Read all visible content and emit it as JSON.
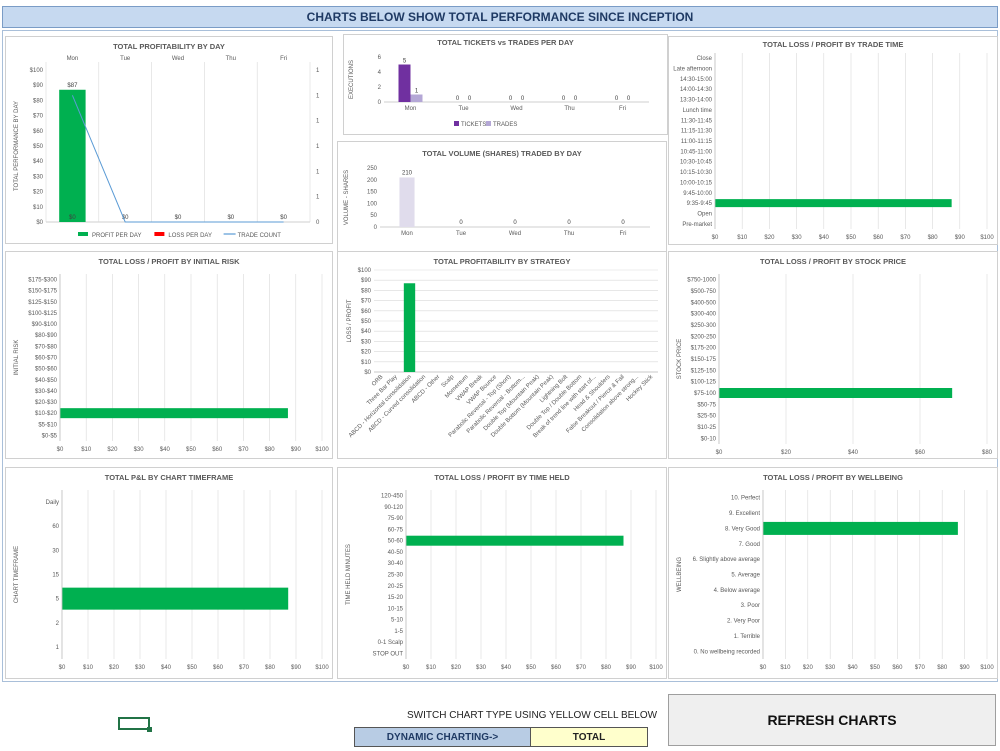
{
  "header": {
    "title": "CHARTS BELOW SHOW TOTAL PERFORMANCE SINCE INCEPTION"
  },
  "footer": {
    "switch_label": "SWITCH CHART TYPE USING YELLOW CELL BELOW",
    "dynamic_label": "DYNAMIC CHARTING->",
    "dynamic_value": "TOTAL",
    "refresh_label": "REFRESH CHARTS"
  },
  "colors": {
    "green": "#00b050",
    "red": "#ff0000",
    "blue": "#5b9bd5",
    "purple": "#7030a0",
    "lavender": "#b4a7d6",
    "lightlavender": "#e0dcec"
  },
  "chart_data": [
    {
      "id": "profit_by_day",
      "type": "bar",
      "title": "TOTAL PROFITABILITY BY DAY",
      "ylabel": "TOTAL PERFORMANCE BY DAY",
      "categories": [
        "Mon",
        "Tue",
        "Wed",
        "Thu",
        "Fri"
      ],
      "yticks": [
        "$0",
        "$10",
        "$20",
        "$30",
        "$40",
        "$50",
        "$60",
        "$70",
        "$80",
        "$90",
        "$100"
      ],
      "y2ticks": [
        "0",
        "1",
        "1",
        "1",
        "1",
        "1",
        "1"
      ],
      "ylim": [
        0,
        100
      ],
      "series": [
        {
          "name": "PROFIT PER DAY",
          "values": [
            87,
            0,
            0,
            0,
            0
          ]
        },
        {
          "name": "LOSS PER DAY",
          "values": [
            0,
            0,
            0,
            0,
            0
          ]
        },
        {
          "name": "TRADE COUNT",
          "values": [
            1,
            0,
            0,
            0,
            0
          ]
        }
      ],
      "data_labels": [
        "$87",
        "$0",
        "$0",
        "$0",
        "$0"
      ],
      "bar_inner_labels": [
        "$0",
        "",
        "",
        "",
        ""
      ],
      "legend": "bottom"
    },
    {
      "id": "tickets_trades",
      "type": "bar",
      "title": "TOTAL TICKETS vs TRADES PER DAY",
      "ylabel": "EXECUTIONS",
      "categories": [
        "Mon",
        "Tue",
        "Wed",
        "Thu",
        "Fri"
      ],
      "yticks": [
        "0",
        "2",
        "4",
        "6"
      ],
      "ylim": [
        0,
        6
      ],
      "series": [
        {
          "name": "TICKETS",
          "values": [
            5,
            0,
            0,
            0,
            0
          ]
        },
        {
          "name": "TRADES",
          "values": [
            1,
            0,
            0,
            0,
            0
          ]
        }
      ],
      "legend": "bottom"
    },
    {
      "id": "volume_by_day",
      "type": "bar",
      "title": "TOTAL VOLUME (SHARES) TRADED BY DAY",
      "ylabel": "VOLUME - SHARES",
      "categories": [
        "Mon",
        "Tue",
        "Wed",
        "Thu",
        "Fri"
      ],
      "yticks": [
        "0",
        "50",
        "100",
        "150",
        "200",
        "250"
      ],
      "ylim": [
        0,
        250
      ],
      "values": [
        210,
        0,
        0,
        0,
        0
      ]
    },
    {
      "id": "trade_time",
      "type": "bar",
      "title": "TOTAL LOSS / PROFIT BY TRADE TIME",
      "categories": [
        "Close",
        "Late afternoon",
        "14:30-15:00",
        "14:00-14:30",
        "13:30-14:00",
        "Lunch time",
        "11:30-11:45",
        "11:15-11:30",
        "11:00-11:15",
        "10:45-11:00",
        "10:30-10:45",
        "10:15-10:30",
        "10:00-10:15",
        "9:45-10:00",
        "9:35-9:45",
        "Open",
        "Pre-market"
      ],
      "xticks": [
        "$0",
        "$10",
        "$20",
        "$30",
        "$40",
        "$50",
        "$60",
        "$70",
        "$80",
        "$90",
        "$100"
      ],
      "xlim": [
        0,
        100
      ],
      "values": [
        0,
        0,
        0,
        0,
        0,
        0,
        0,
        0,
        0,
        0,
        0,
        0,
        0,
        0,
        87,
        0,
        0
      ]
    },
    {
      "id": "initial_risk",
      "type": "bar",
      "title": "TOTAL LOSS / PROFIT BY INITIAL RISK",
      "ylabel": "INITIAL RISK",
      "categories": [
        "$175-$300",
        "$150-$175",
        "$125-$150",
        "$100-$125",
        "$90-$100",
        "$80-$90",
        "$70-$80",
        "$60-$70",
        "$50-$60",
        "$40-$50",
        "$30-$40",
        "$20-$30",
        "$10-$20",
        "$5-$10",
        "$0-$5"
      ],
      "xticks": [
        "$0",
        "$10",
        "$20",
        "$30",
        "$40",
        "$50",
        "$60",
        "$70",
        "$80",
        "$90",
        "$100"
      ],
      "xlim": [
        0,
        100
      ],
      "values": [
        0,
        0,
        0,
        0,
        0,
        0,
        0,
        0,
        0,
        0,
        0,
        0,
        87,
        0,
        0
      ]
    },
    {
      "id": "strategy",
      "type": "bar",
      "title": "TOTAL PROFITABILITY BY STRATEGY",
      "ylabel": "LOSS / PROFIT",
      "categories": [
        "ORB",
        "Three Bar Play",
        "ABCD - Horizontal consolidation",
        "ABCD - Curved consolidation",
        "ABCD - Other",
        "Scalp",
        "Momentum",
        "VWAP Break",
        "VWAP Bounce",
        "Parabolic Reversal - Top (Short)",
        "Parabolic Reversal - Bottom...",
        "Double Top (Mountain Peak)",
        "Double Bottom (Mountain Peak)",
        "Lightning Bolt",
        "Double Top / Double Bottom",
        "Break of trend line with start of...",
        "Head & Shoulders",
        "False Breakout / Pierce & Fail",
        "Consolidation above strong...",
        "Hockey Stick"
      ],
      "yticks": [
        "$0",
        "$10",
        "$20",
        "$30",
        "$40",
        "$50",
        "$60",
        "$70",
        "$80",
        "$90",
        "$100"
      ],
      "ylim": [
        0,
        100
      ],
      "values": [
        0,
        0,
        87,
        0,
        0,
        0,
        0,
        0,
        0,
        0,
        0,
        0,
        0,
        0,
        0,
        0,
        0,
        0,
        0,
        0
      ]
    },
    {
      "id": "stock_price",
      "type": "bar",
      "title": "TOTAL LOSS / PROFIT BY STOCK PRICE",
      "ylabel": "STOCK PRICE",
      "categories": [
        "$750-1000",
        "$500-750",
        "$400-500",
        "$300-400",
        "$250-300",
        "$200-250",
        "$175-200",
        "$150-175",
        "$125-150",
        "$100-125",
        "$75-100",
        "$50-75",
        "$25-50",
        "$10-25",
        "$0-10"
      ],
      "xticks": [
        "$0",
        "$20",
        "$40",
        "$60",
        "$80"
      ],
      "xlim": [
        0,
        100
      ],
      "values": [
        0,
        0,
        0,
        0,
        0,
        0,
        0,
        0,
        0,
        0,
        87,
        0,
        0,
        0,
        0
      ]
    },
    {
      "id": "timeframe",
      "type": "bar",
      "title": "TOTAL P&L BY CHART TIMEFRAME",
      "ylabel": "CHART TIMEFRAME",
      "categories": [
        "Daily",
        "60",
        "30",
        "15",
        "5",
        "2",
        "1"
      ],
      "xticks": [
        "$0",
        "$10",
        "$20",
        "$30",
        "$40",
        "$50",
        "$60",
        "$70",
        "$80",
        "$90",
        "$100"
      ],
      "xlim": [
        0,
        100
      ],
      "values": [
        0,
        0,
        0,
        0,
        87,
        0,
        0
      ]
    },
    {
      "id": "time_held",
      "type": "bar",
      "title": "TOTAL LOSS / PROFIT BY TIME HELD",
      "ylabel": "TIME HELD MINUTES",
      "categories": [
        "120-450",
        "90-120",
        "75-90",
        "60-75",
        "50-60",
        "40-50",
        "30-40",
        "25-30",
        "20-25",
        "15-20",
        "10-15",
        "5-10",
        "1-5",
        "0-1 Scalp",
        "STOP OUT"
      ],
      "xticks": [
        "$0",
        "$10",
        "$20",
        "$30",
        "$40",
        "$50",
        "$60",
        "$70",
        "$80",
        "$90",
        "$100"
      ],
      "xlim": [
        0,
        100
      ],
      "values": [
        0,
        0,
        0,
        0,
        87,
        0,
        0,
        0,
        0,
        0,
        0,
        0,
        0,
        0,
        0
      ]
    },
    {
      "id": "wellbeing",
      "type": "bar",
      "title": "TOTAL LOSS / PROFIT BY WELLBEING",
      "ylabel": "WELLBEING",
      "categories": [
        "10. Perfect",
        "9. Excellent",
        "8. Very Good",
        "7. Good",
        "6. Slightly above average",
        "5. Average",
        "4. Below average",
        "3. Poor",
        "2. Very Poor",
        "1. Terrible",
        "0. No wellbeing recorded"
      ],
      "xticks": [
        "$0",
        "$10",
        "$20",
        "$30",
        "$40",
        "$50",
        "$60",
        "$70",
        "$80",
        "$90",
        "$100"
      ],
      "xlim": [
        0,
        100
      ],
      "values": [
        0,
        0,
        87,
        0,
        0,
        0,
        0,
        0,
        0,
        0,
        0
      ]
    }
  ]
}
